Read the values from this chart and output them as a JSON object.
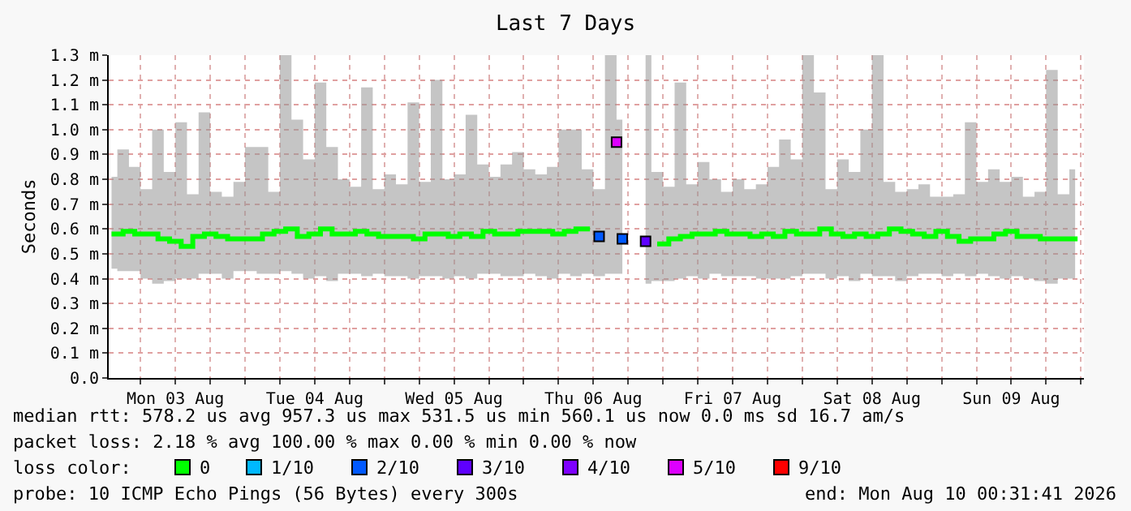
{
  "chart_data": {
    "type": "step",
    "title": "Last 7 Days",
    "ylabel": "Seconds",
    "legend_title": "loss color:",
    "legend": "bottom",
    "grid": true,
    "xlim": [
      "2026-08-03T00:31",
      "2026-08-10T00:31"
    ],
    "xticks": [
      {
        "value": "2026-08-03T06:00",
        "label": null
      },
      {
        "value": "2026-08-03T12:00",
        "label": "Mon 03 Aug"
      },
      {
        "value": "2026-08-03T18:00",
        "label": null
      },
      {
        "value": "2026-08-04T00:00",
        "label": null
      },
      {
        "value": "2026-08-04T06:00",
        "label": null
      },
      {
        "value": "2026-08-04T12:00",
        "label": "Tue 04 Aug"
      },
      {
        "value": "2026-08-04T18:00",
        "label": null
      },
      {
        "value": "2026-08-05T00:00",
        "label": null
      },
      {
        "value": "2026-08-05T06:00",
        "label": null
      },
      {
        "value": "2026-08-05T12:00",
        "label": "Wed 05 Aug"
      },
      {
        "value": "2026-08-05T18:00",
        "label": null
      },
      {
        "value": "2026-08-06T00:00",
        "label": null
      },
      {
        "value": "2026-08-06T06:00",
        "label": null
      },
      {
        "value": "2026-08-06T12:00",
        "label": "Thu 06 Aug"
      },
      {
        "value": "2026-08-06T18:00",
        "label": null
      },
      {
        "value": "2026-08-07T00:00",
        "label": null
      },
      {
        "value": "2026-08-07T06:00",
        "label": null
      },
      {
        "value": "2026-08-07T12:00",
        "label": "Fri 07 Aug"
      },
      {
        "value": "2026-08-07T18:00",
        "label": null
      },
      {
        "value": "2026-08-08T00:00",
        "label": null
      },
      {
        "value": "2026-08-08T06:00",
        "label": null
      },
      {
        "value": "2026-08-08T12:00",
        "label": "Sat 08 Aug"
      },
      {
        "value": "2026-08-08T18:00",
        "label": null
      },
      {
        "value": "2026-08-09T00:00",
        "label": null
      },
      {
        "value": "2026-08-09T06:00",
        "label": null
      },
      {
        "value": "2026-08-09T12:00",
        "label": "Sun 09 Aug"
      },
      {
        "value": "2026-08-09T18:00",
        "label": null
      },
      {
        "value": "2026-08-10T00:00",
        "label": null
      }
    ],
    "ylim": [
      0,
      1.3
    ],
    "yticks": [
      {
        "value": 0,
        "label": "0.0"
      },
      {
        "value": 0.1,
        "label": "0.1 m"
      },
      {
        "value": 0.2,
        "label": "0.2 m"
      },
      {
        "value": 0.3,
        "label": "0.3 m"
      },
      {
        "value": 0.4,
        "label": "0.4 m"
      },
      {
        "value": 0.5,
        "label": "0.5 m"
      },
      {
        "value": 0.6,
        "label": "0.6 m"
      },
      {
        "value": 0.7,
        "label": "0.7 m"
      },
      {
        "value": 0.8,
        "label": "0.8 m"
      },
      {
        "value": 0.9,
        "label": "0.9 m"
      },
      {
        "value": 1.0,
        "label": "1.0 m"
      },
      {
        "value": 1.1,
        "label": "1.1 m"
      },
      {
        "value": 1.2,
        "label": "1.2 m"
      },
      {
        "value": 1.3,
        "label": "1.3 m"
      }
    ],
    "x": [
      "2026-08-03T01:00",
      "2026-08-03T03:00",
      "2026-08-03T05:00",
      "2026-08-03T07:00",
      "2026-08-03T09:00",
      "2026-08-03T11:00",
      "2026-08-03T13:00",
      "2026-08-03T15:00",
      "2026-08-03T17:00",
      "2026-08-03T19:00",
      "2026-08-03T21:00",
      "2026-08-03T23:00",
      "2026-08-04T01:00",
      "2026-08-04T03:00",
      "2026-08-04T05:00",
      "2026-08-04T07:00",
      "2026-08-04T09:00",
      "2026-08-04T11:00",
      "2026-08-04T13:00",
      "2026-08-04T15:00",
      "2026-08-04T17:00",
      "2026-08-04T19:00",
      "2026-08-04T21:00",
      "2026-08-04T23:00",
      "2026-08-05T01:00",
      "2026-08-05T03:00",
      "2026-08-05T05:00",
      "2026-08-05T07:00",
      "2026-08-05T09:00",
      "2026-08-05T11:00",
      "2026-08-05T13:00",
      "2026-08-05T15:00",
      "2026-08-05T17:00",
      "2026-08-05T19:00",
      "2026-08-05T21:00",
      "2026-08-05T23:00",
      "2026-08-06T01:00",
      "2026-08-06T03:00",
      "2026-08-06T05:00",
      "2026-08-06T07:00",
      "2026-08-06T09:00",
      "2026-08-06T11:00",
      "2026-08-06T13:00",
      "2026-08-06T15:00",
      "2026-08-06T17:00",
      "2026-08-06T19:00",
      "2026-08-06T21:00",
      "2026-08-06T23:00",
      "2026-08-07T01:00",
      "2026-08-07T03:00",
      "2026-08-07T05:00",
      "2026-08-07T07:00",
      "2026-08-07T09:00",
      "2026-08-07T11:00",
      "2026-08-07T13:00",
      "2026-08-07T15:00",
      "2026-08-07T17:00",
      "2026-08-07T19:00",
      "2026-08-07T21:00",
      "2026-08-07T23:00",
      "2026-08-08T01:00",
      "2026-08-08T03:00",
      "2026-08-08T05:00",
      "2026-08-08T07:00",
      "2026-08-08T09:00",
      "2026-08-08T11:00",
      "2026-08-08T13:00",
      "2026-08-08T15:00",
      "2026-08-08T17:00",
      "2026-08-08T19:00",
      "2026-08-08T21:00",
      "2026-08-08T23:00",
      "2026-08-09T01:00",
      "2026-08-09T03:00",
      "2026-08-09T05:00",
      "2026-08-09T07:00",
      "2026-08-09T09:00",
      "2026-08-09T11:00",
      "2026-08-09T13:00",
      "2026-08-09T15:00",
      "2026-08-09T17:00",
      "2026-08-09T19:00",
      "2026-08-09T21:00",
      "2026-08-09T23:00"
    ],
    "series": [
      {
        "name": "0",
        "color": "#00ff00",
        "values": [
          0.58,
          0.59,
          0.58,
          0.58,
          0.56,
          0.55,
          0.53,
          0.57,
          0.58,
          0.57,
          0.56,
          0.56,
          0.56,
          0.58,
          0.59,
          0.6,
          0.57,
          0.58,
          0.6,
          0.58,
          0.58,
          0.59,
          0.58,
          0.57,
          0.57,
          0.57,
          0.56,
          0.58,
          0.58,
          0.57,
          0.58,
          0.57,
          0.59,
          0.58,
          0.58,
          0.59,
          0.59,
          0.59,
          0.58,
          0.59,
          0.6,
          0.59,
          null,
          null,
          null,
          null,
          null,
          0.54,
          0.56,
          0.57,
          0.58,
          0.58,
          0.59,
          0.58,
          0.58,
          0.57,
          0.58,
          0.57,
          0.59,
          0.58,
          0.58,
          0.6,
          0.58,
          0.57,
          0.58,
          0.57,
          0.58,
          0.6,
          0.59,
          0.58,
          0.57,
          0.59,
          0.57,
          0.55,
          0.56,
          0.56,
          0.58,
          0.59,
          0.57,
          0.57,
          0.56,
          0.56,
          0.56,
          0.55
        ],
        "lower": [
          0.44,
          0.43,
          0.43,
          0.4,
          0.38,
          0.39,
          0.4,
          0.4,
          0.42,
          0.42,
          0.4,
          0.43,
          0.43,
          0.42,
          0.42,
          0.43,
          0.42,
          0.4,
          0.41,
          0.39,
          0.42,
          0.42,
          0.41,
          0.42,
          0.41,
          0.41,
          0.4,
          0.41,
          0.41,
          0.4,
          0.41,
          0.4,
          0.42,
          0.42,
          0.41,
          0.41,
          0.42,
          0.41,
          0.4,
          0.42,
          0.41,
          0.42,
          0.41,
          0.42,
          0.42,
          null,
          0.38,
          0.39,
          0.39,
          0.4,
          0.41,
          0.4,
          0.42,
          0.41,
          0.41,
          0.41,
          0.4,
          0.4,
          0.4,
          0.41,
          0.42,
          0.42,
          0.4,
          0.41,
          0.39,
          0.42,
          0.41,
          0.41,
          0.39,
          0.41,
          0.42,
          0.42,
          0.41,
          0.42,
          0.41,
          0.42,
          0.41,
          0.4,
          0.41,
          0.4,
          0.39,
          0.38,
          0.4,
          0.4
        ],
        "upper": [
          0.81,
          0.92,
          0.85,
          0.76,
          1.0,
          0.83,
          1.03,
          0.74,
          1.07,
          0.75,
          0.73,
          0.79,
          0.93,
          0.93,
          0.75,
          1.3,
          1.04,
          0.88,
          1.19,
          0.93,
          0.8,
          0.77,
          1.17,
          0.76,
          0.82,
          0.78,
          1.11,
          0.79,
          1.2,
          0.8,
          0.82,
          1.06,
          0.86,
          0.81,
          0.86,
          0.91,
          0.84,
          0.82,
          0.85,
          1.0,
          1.0,
          0.84,
          0.76,
          1.3,
          1.04,
          null,
          1.3,
          0.83,
          0.77,
          1.19,
          0.78,
          0.87,
          0.8,
          0.75,
          0.8,
          0.76,
          0.78,
          0.85,
          0.96,
          0.88,
          1.3,
          1.15,
          0.76,
          0.88,
          0.83,
          1.0,
          1.3,
          0.79,
          0.75,
          0.76,
          0.78,
          0.73,
          0.73,
          0.74,
          1.03,
          0.79,
          0.84,
          0.79,
          0.81,
          0.73,
          0.75,
          1.24,
          0.74,
          0.84
        ]
      },
      {
        "name": "1/10",
        "color": "#00b8ff",
        "type": "scatter",
        "marker": "square",
        "values": [
          null,
          null,
          null,
          null,
          null,
          null,
          null,
          null,
          null,
          null,
          null,
          null,
          null,
          null,
          null,
          null,
          null,
          null,
          null,
          null,
          null,
          null,
          null,
          null,
          null,
          null,
          null,
          null,
          null,
          null,
          null,
          null,
          null,
          null,
          null,
          null,
          null,
          null,
          null,
          null,
          null,
          null,
          null,
          null,
          null,
          null,
          null,
          null,
          null,
          null,
          null,
          null,
          null,
          null,
          null,
          null,
          null,
          null,
          null,
          null,
          null,
          null,
          null,
          null,
          null,
          null,
          null,
          null,
          null,
          null,
          null,
          null,
          null,
          null,
          null,
          null,
          null,
          null,
          null,
          null,
          null,
          null,
          null,
          null
        ]
      },
      {
        "name": "2/10",
        "color": "#0059ff",
        "type": "scatter",
        "marker": "square",
        "x": [
          "2026-08-06T13:00",
          "2026-08-06T17:00"
        ],
        "values": [
          0.57,
          0.56
        ]
      },
      {
        "name": "3/10",
        "color": "#5e00ff",
        "type": "scatter",
        "marker": "square",
        "x": [
          "2026-08-06T21:00"
        ],
        "values": [
          0.55
        ]
      },
      {
        "name": "4/10",
        "color": "#7e00ff",
        "type": "scatter",
        "marker": "square",
        "values": [
          null,
          null,
          null,
          null,
          null,
          null,
          null,
          null,
          null,
          null,
          null,
          null,
          null,
          null,
          null,
          null,
          null,
          null,
          null,
          null,
          null,
          null,
          null,
          null,
          null,
          null,
          null,
          null,
          null,
          null,
          null,
          null,
          null,
          null,
          null,
          null,
          null,
          null,
          null,
          null,
          null,
          null,
          null,
          null,
          null,
          null,
          null,
          null,
          null,
          null,
          null,
          null,
          null,
          null,
          null,
          null,
          null,
          null,
          null,
          null,
          null,
          null,
          null,
          null,
          null,
          null,
          null,
          null,
          null,
          null,
          null,
          null,
          null,
          null,
          null,
          null,
          null,
          null,
          null,
          null,
          null,
          null,
          null,
          null
        ]
      },
      {
        "name": "5/10",
        "color": "#dd00ff",
        "type": "scatter",
        "marker": "square",
        "x": [
          "2026-08-06T16:00"
        ],
        "values": [
          0.95
        ]
      },
      {
        "name": "9/10",
        "color": "#ff0000",
        "type": "scatter",
        "marker": "square",
        "values": [
          null,
          null,
          null,
          null,
          null,
          null,
          null,
          null,
          null,
          null,
          null,
          null,
          null,
          null,
          null,
          null,
          null,
          null,
          null,
          null,
          null,
          null,
          null,
          null,
          null,
          null,
          null,
          null,
          null,
          null,
          null,
          null,
          null,
          null,
          null,
          null,
          null,
          null,
          null,
          null,
          null,
          null,
          null,
          null,
          null,
          null,
          null,
          null,
          null,
          null,
          null,
          null,
          null,
          null,
          null,
          null,
          null,
          null,
          null,
          null,
          null,
          null,
          null,
          null,
          null,
          null,
          null,
          null,
          null,
          null,
          null,
          null,
          null,
          null,
          null,
          null,
          null,
          null,
          null,
          null,
          null,
          null,
          null,
          null
        ]
      }
    ],
    "annotations": [
      "median rtt: 578.2 us avg 957.3 us max 531.5 us min 560.1 us now 0.0 ms sd 16.7 am/s",
      "packet loss: 2.18 % avg 100.00 % max 0.00 % min 0.00 % now",
      "probe: 10 ICMP Echo Pings (56 Bytes) every 300s",
      "end: Mon Aug 10 00:31:41 2026"
    ]
  }
}
